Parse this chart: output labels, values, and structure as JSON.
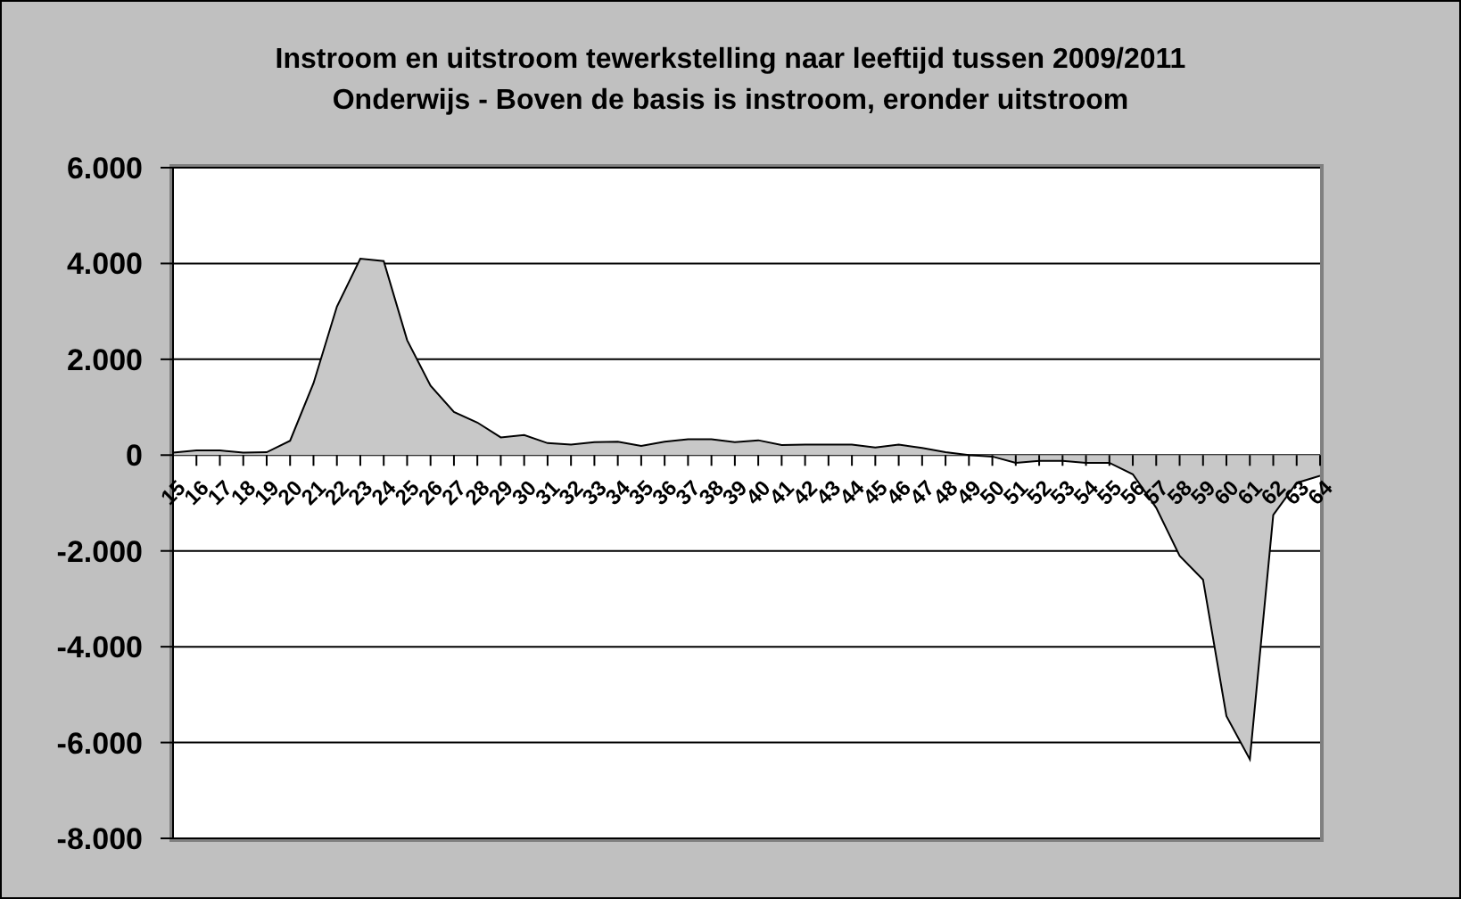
{
  "chart_data": {
    "type": "area",
    "title": "Instroom en uitstroom tewerkstelling naar leeftijd tussen 2009/2011",
    "subtitle": "Onderwijs - Boven de basis is instroom, eronder uitstroom",
    "categories": [
      "15",
      "16",
      "17",
      "18",
      "19",
      "20",
      "21",
      "22",
      "23",
      "24",
      "25",
      "26",
      "27",
      "28",
      "29",
      "30",
      "31",
      "32",
      "33",
      "34",
      "35",
      "36",
      "37",
      "38",
      "39",
      "40",
      "41",
      "42",
      "43",
      "44",
      "45",
      "46",
      "47",
      "48",
      "49",
      "50",
      "51",
      "52",
      "53",
      "54",
      "55",
      "56",
      "57",
      "58",
      "59",
      "60",
      "61",
      "62",
      "63",
      "64"
    ],
    "values": [
      50,
      100,
      100,
      50,
      60,
      300,
      1500,
      3100,
      4100,
      4050,
      2400,
      1450,
      900,
      680,
      370,
      420,
      250,
      220,
      270,
      280,
      190,
      280,
      330,
      330,
      270,
      310,
      210,
      220,
      220,
      220,
      160,
      220,
      150,
      60,
      0,
      -30,
      -160,
      -120,
      -120,
      -160,
      -160,
      -400,
      -1100,
      -2100,
      -2600,
      -5450,
      -6350,
      -1250,
      -580,
      -430
    ],
    "color": "#c8c8c8",
    "ylim": [
      -8000,
      6000
    ],
    "yticks": [
      {
        "value": -8000,
        "label": "-8.000"
      },
      {
        "value": -6000,
        "label": "-6.000"
      },
      {
        "value": -4000,
        "label": "-4.000"
      },
      {
        "value": -2000,
        "label": "-2.000"
      },
      0,
      {
        "value": 2000,
        "label": "2.000"
      },
      {
        "value": 4000,
        "label": "4.000"
      },
      {
        "value": 6000,
        "label": "6.000"
      }
    ],
    "grid": "y"
  }
}
